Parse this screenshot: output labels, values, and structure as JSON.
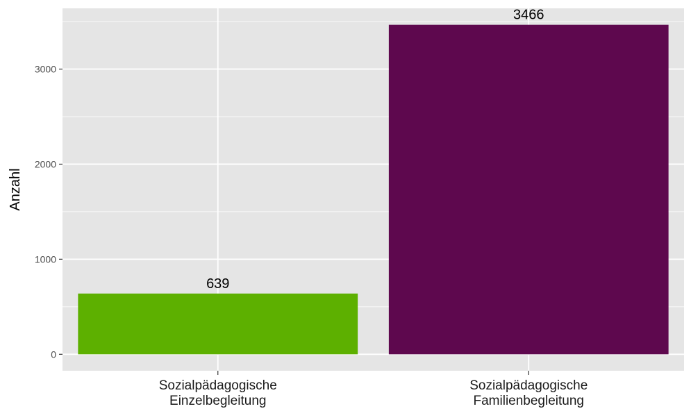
{
  "chart_data": {
    "type": "bar",
    "title": "",
    "xlabel": "",
    "ylabel": "Anzahl",
    "categories": [
      [
        "Sozialpädagogische",
        "Einzelbegleitung"
      ],
      [
        "Sozialpädagogische",
        "Familienbegleitung"
      ]
    ],
    "values": [
      639,
      3466
    ],
    "data_labels": [
      "639",
      "3466"
    ],
    "colors": [
      "#5DB000",
      "#5E084E"
    ],
    "y_ticks": [
      0,
      1000,
      2000,
      3000
    ],
    "y_tick_labels": [
      "0",
      "1000",
      "2000",
      "3000"
    ],
    "ylim": [
      -173,
      3639
    ],
    "grid": true,
    "legend": "none",
    "panel_background": "#E5E5E5",
    "grid_color": "#FFFFFF"
  }
}
